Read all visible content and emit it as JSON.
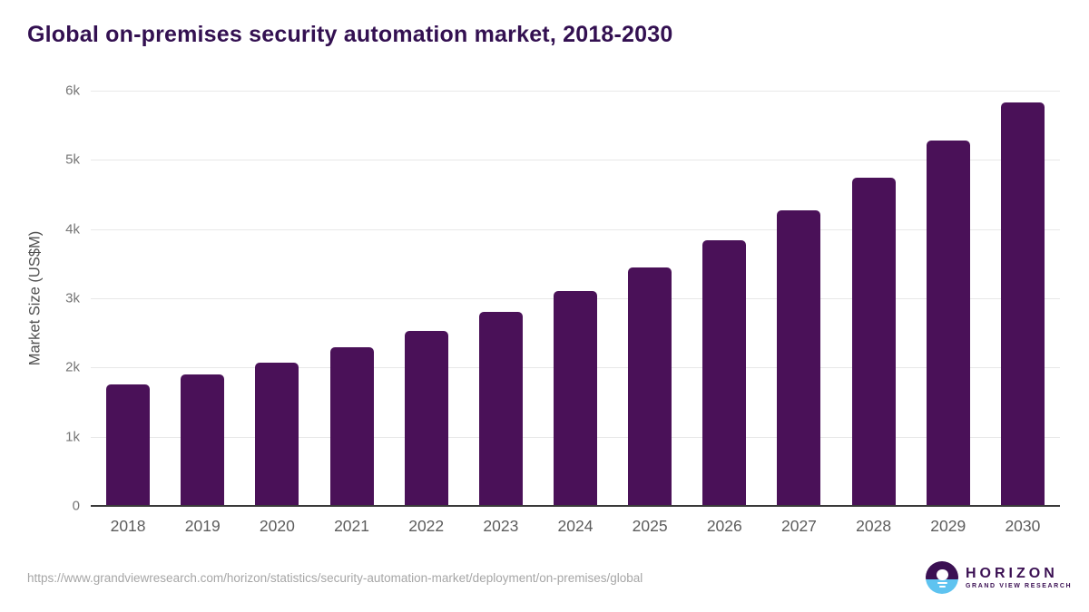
{
  "header": {
    "title": "Global on-premises security automation market, 2018-2030"
  },
  "chart_data": {
    "type": "bar",
    "title": "Global on-premises security automation market, 2018-2030",
    "categories": [
      "2018",
      "2019",
      "2020",
      "2021",
      "2022",
      "2023",
      "2024",
      "2025",
      "2026",
      "2027",
      "2028",
      "2029",
      "2030"
    ],
    "values": [
      1755,
      1905,
      2065,
      2290,
      2530,
      2800,
      3105,
      3445,
      3835,
      4275,
      4745,
      5275,
      5835
    ],
    "xlabel": "",
    "ylabel": "Market Size (US$M)",
    "ylim": [
      0,
      6000
    ],
    "yticks": [
      {
        "value": 0,
        "label": "0"
      },
      {
        "value": 1000,
        "label": "1k"
      },
      {
        "value": 2000,
        "label": "2k"
      },
      {
        "value": 3000,
        "label": "3k"
      },
      {
        "value": 4000,
        "label": "4k"
      },
      {
        "value": 5000,
        "label": "5k"
      },
      {
        "value": 6000,
        "label": "6k"
      }
    ],
    "grid": "horizontal",
    "legend_position": "none",
    "bar_color": "#4a1158",
    "title_color": "#331051"
  },
  "footer": {
    "source_url": "https://www.grandviewresearch.com/horizon/statistics/security-automation-market/deployment/on-premises/global",
    "logo": {
      "brand": "HORIZON",
      "sub_brand": "GRAND VIEW RESEARCH",
      "brand_color": "#3b1053",
      "accent_blue": "#5ec3f0"
    }
  }
}
